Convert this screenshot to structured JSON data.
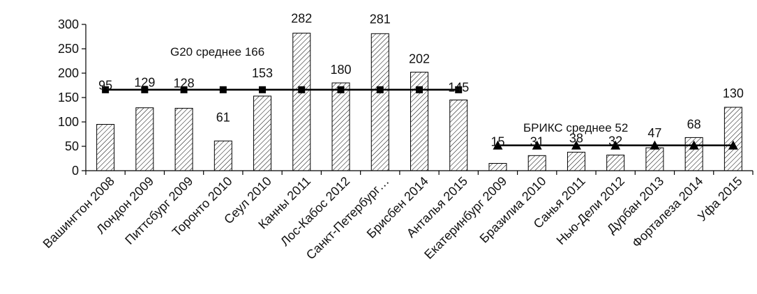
{
  "chart_data": {
    "type": "bar",
    "title": "",
    "xlabel": "",
    "ylabel": "",
    "ylim": [
      0,
      300
    ],
    "yticks": [
      0,
      50,
      100,
      150,
      200,
      250,
      300
    ],
    "grid": false,
    "legend": "none",
    "bar_fill": "diagonal-hatch",
    "colors": {
      "bar_stroke": "#000000",
      "hatch": "#000000",
      "line": "#000000",
      "text": "#111111"
    },
    "categories": [
      "Вашингтон 2008",
      "Лондон 2009",
      "Питтсбург 2009",
      "Торонто 2010",
      "Сеул 2010",
      "Канны 2011",
      "Лос-Кабос 2012",
      "Санкт-Петербург…",
      "Брисбен 2014",
      "Анталья 2015",
      "Екатеринбург 2009",
      "Бразилиа 2010",
      "Санья 2011",
      "Нью-Дели 2012",
      "Дурбан 2013",
      "Форталеза 2014",
      "Уфа 2015"
    ],
    "values": [
      95,
      129,
      128,
      61,
      153,
      282,
      180,
      281,
      202,
      145,
      15,
      31,
      38,
      32,
      47,
      68,
      130
    ],
    "reference_lines": [
      {
        "label": "G20 среднее 166",
        "value": 166,
        "marker": "square",
        "from": "Вашингтон 2008",
        "to": "Анталья 2015"
      },
      {
        "label": "БРИКС среднее 52",
        "value": 52,
        "marker": "triangle",
        "from": "Екатеринбург 2009",
        "to": "Уфа 2015"
      }
    ]
  }
}
